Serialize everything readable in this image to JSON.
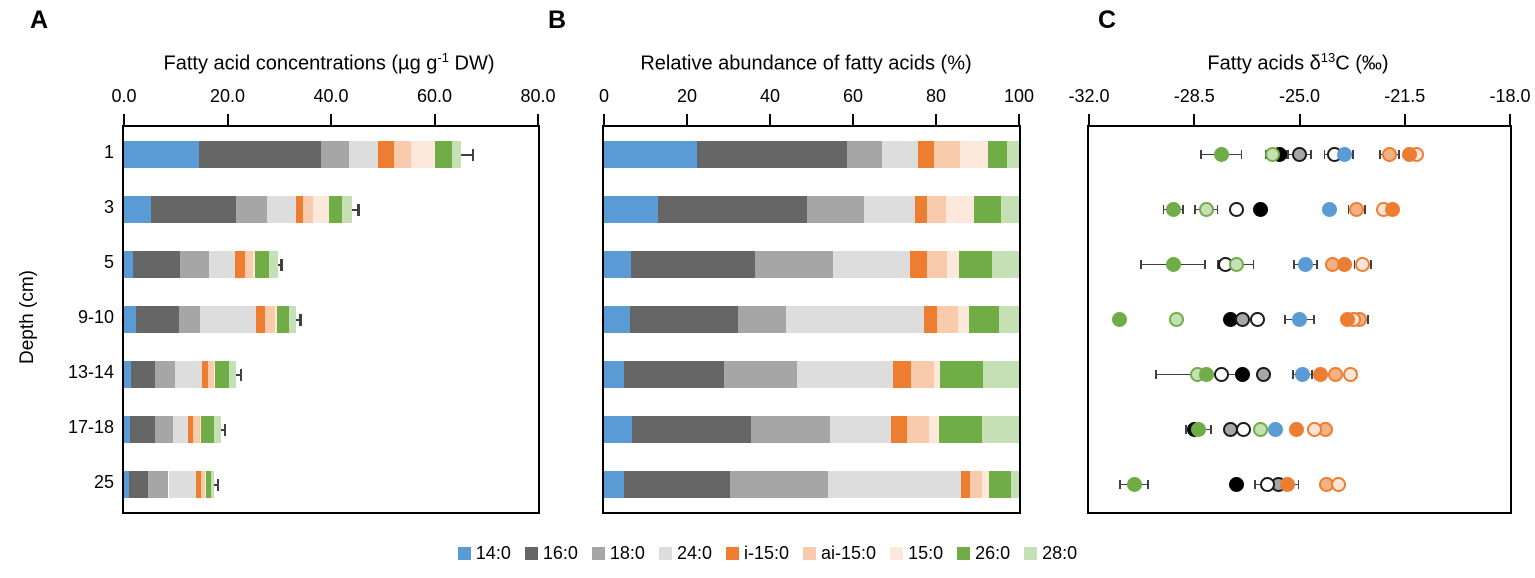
{
  "figure": {
    "panel_labels": {
      "a": "A",
      "b": "B",
      "c": "C"
    }
  },
  "y_axis": {
    "label": "Depth (cm)",
    "categories": [
      "1",
      "3",
      "5",
      "9-10",
      "13-14",
      "17-18",
      "25"
    ]
  },
  "panels": {
    "a": {
      "title": {
        "pre": "Fatty acid concentrations (µg g",
        "sup": "-1",
        "post": " DW)"
      }
    },
    "b": {
      "title": {
        "pre": "Relative abundance of fatty acids (%)",
        "sup": "",
        "post": ""
      }
    },
    "c": {
      "title": {
        "pre": "Fatty acids δ",
        "sup": "13",
        "post": "C (‰)"
      }
    }
  },
  "legend": {
    "items": [
      {
        "label": "14:0",
        "color": "#5B9BD5"
      },
      {
        "label": "16:0",
        "color": "#666666"
      },
      {
        "label": "18:0",
        "color": "#A6A6A6"
      },
      {
        "label": "24:0",
        "color": "#DDDDDD"
      },
      {
        "label": "i-15:0",
        "color": "#ED7D31"
      },
      {
        "label": "ai-15:0",
        "color": "#F8CBAD"
      },
      {
        "label": "15:0",
        "color": "#FCE9DC"
      },
      {
        "label": "26:0",
        "color": "#70AD47"
      },
      {
        "label": "28:0",
        "color": "#C5E0B4"
      }
    ]
  },
  "c_marker_styles": {
    "14:0": {
      "fill": "#5B9BD5",
      "edge": "#5B9BD5"
    },
    "16:0": {
      "fill": "#000000",
      "edge": "#000000"
    },
    "18:0": {
      "fill": "#A6A6A6",
      "edge": "#1a1a1a"
    },
    "24:0": {
      "fill": "#FFFFFF",
      "edge": "#1a1a1a"
    },
    "i-15:0": {
      "fill": "#ED7D31",
      "edge": "#ED7D31"
    },
    "ai-15:0": {
      "fill": "#F4B183",
      "edge": "#ED7D31"
    },
    "15:0": {
      "fill": "#FBE5D6",
      "edge": "#ED7D31"
    },
    "26:0": {
      "fill": "#70AD47",
      "edge": "#70AD47"
    },
    "28:0": {
      "fill": "#C5E0B4",
      "edge": "#70AD47"
    }
  },
  "chart_data": [
    {
      "type": "bar",
      "stacked": true,
      "orientation": "horizontal",
      "panel": "A",
      "title": "Fatty acid concentrations (µg g-1 DW)",
      "ylabel": "Depth (cm)",
      "categories": [
        "1",
        "3",
        "5",
        "9-10",
        "13-14",
        "17-18",
        "25"
      ],
      "xlim": [
        0,
        80
      ],
      "xticks": [
        0,
        20,
        40,
        60,
        80
      ],
      "xtick_labels": [
        "0.0",
        "20.0",
        "40.0",
        "60.0",
        "80.0"
      ],
      "series": [
        {
          "name": "14:0",
          "values": [
            14.4,
            5.3,
            1.8,
            2.3,
            1.4,
            1.2,
            1.0
          ]
        },
        {
          "name": "16:0",
          "values": [
            23.7,
            16.3,
            9.0,
            8.3,
            4.5,
            4.8,
            3.6
          ]
        },
        {
          "name": "18:0",
          "values": [
            5.4,
            6.0,
            5.7,
            4.0,
            3.9,
            3.5,
            4.0
          ]
        },
        {
          "name": "24:0",
          "values": [
            5.6,
            5.6,
            5.0,
            11.0,
            5.3,
            2.8,
            5.4
          ]
        },
        {
          "name": "i-15:0",
          "values": [
            3.1,
            1.4,
            1.8,
            1.6,
            1.2,
            1.0,
            0.9
          ]
        },
        {
          "name": "ai-15:0",
          "values": [
            3.3,
            1.9,
            1.6,
            2.0,
            1.0,
            1.4,
            0.8
          ]
        },
        {
          "name": "15:0",
          "values": [
            4.6,
            3.1,
            0.4,
            0.3,
            0.3,
            0.2,
            0.2
          ]
        },
        {
          "name": "26:0",
          "values": [
            3.3,
            2.6,
            2.7,
            2.4,
            2.6,
            2.4,
            1.0
          ]
        },
        {
          "name": "28:0",
          "values": [
            1.7,
            1.9,
            1.8,
            1.4,
            1.4,
            1.4,
            0.5
          ]
        }
      ],
      "totals": [
        65.1,
        44.1,
        29.8,
        33.3,
        21.6,
        18.7,
        17.4
      ],
      "total_errors": [
        2.3,
        1.2,
        0.6,
        0.8,
        1.0,
        0.8,
        0.7
      ]
    },
    {
      "type": "bar",
      "stacked": true,
      "orientation": "horizontal",
      "panel": "B",
      "title": "Relative abundance of fatty acids (%)",
      "ylabel": "Depth (cm)",
      "categories": [
        "1",
        "3",
        "5",
        "9-10",
        "13-14",
        "17-18",
        "25"
      ],
      "xlim": [
        0,
        100
      ],
      "xticks": [
        0,
        20,
        40,
        60,
        80,
        100
      ],
      "xtick_labels": [
        "0",
        "20",
        "40",
        "60",
        "80",
        "100"
      ],
      "series": [
        {
          "name": "14:0",
          "values": [
            22.5,
            13.1,
            6.4,
            6.2,
            4.7,
            6.7,
            4.8
          ]
        },
        {
          "name": "16:0",
          "values": [
            36.1,
            35.9,
            29.9,
            26.0,
            24.3,
            28.7,
            25.5
          ]
        },
        {
          "name": "18:0",
          "values": [
            8.4,
            13.7,
            18.9,
            11.6,
            17.5,
            19.1,
            23.7
          ]
        },
        {
          "name": "24:0",
          "values": [
            8.6,
            12.2,
            18.6,
            33.3,
            23.1,
            14.6,
            32.0
          ]
        },
        {
          "name": "i-15:0",
          "values": [
            3.9,
            2.9,
            4.0,
            3.2,
            4.4,
            4.0,
            2.2
          ]
        },
        {
          "name": "ai-15:0",
          "values": [
            6.4,
            4.6,
            4.8,
            5.0,
            5.6,
            5.1,
            2.8
          ]
        },
        {
          "name": "15:0",
          "values": [
            6.6,
            6.7,
            3.0,
            2.7,
            1.4,
            2.6,
            1.8
          ]
        },
        {
          "name": "26:0",
          "values": [
            4.7,
            6.6,
            8.0,
            7.2,
            10.4,
            10.4,
            5.2
          ]
        },
        {
          "name": "28:0",
          "values": [
            2.8,
            4.4,
            6.4,
            4.8,
            8.6,
            8.8,
            2.0
          ]
        }
      ],
      "totals": [
        100,
        100,
        100,
        100,
        100,
        100,
        100
      ],
      "total_errors": [
        0,
        0,
        0,
        0,
        0,
        0,
        0
      ]
    },
    {
      "type": "scatter",
      "panel": "C",
      "title": "Fatty acids δ13C (‰)",
      "ylabel": "Depth (cm)",
      "categories": [
        "1",
        "3",
        "5",
        "9-10",
        "13-14",
        "17-18",
        "25"
      ],
      "xlim": [
        -32,
        -18
      ],
      "xticks": [
        -32,
        -28.5,
        -25,
        -21.5,
        -18
      ],
      "xtick_labels": [
        "-32.0",
        "-28.5",
        "-25.0",
        "-21.5",
        "-18.0"
      ],
      "series": [
        {
          "name": "14:0",
          "values": [
            -23.5,
            -24.0,
            -24.8,
            -25.0,
            -24.9,
            -25.8,
            null
          ],
          "errors": [
            0.3,
            0,
            0.4,
            0.5,
            0.35,
            0,
            0
          ]
        },
        {
          "name": "16:0",
          "values": [
            -25.65,
            -26.3,
            null,
            -27.3,
            -26.9,
            -28.5,
            -27.1
          ],
          "errors": [
            0.25,
            0,
            0,
            0,
            0,
            0,
            0
          ]
        },
        {
          "name": "18:0",
          "values": [
            -25.0,
            null,
            null,
            -26.9,
            -26.2,
            -27.3,
            -25.7
          ],
          "errors": [
            0.4,
            0,
            0,
            0,
            0,
            0,
            0
          ]
        },
        {
          "name": "24:0",
          "values": [
            -23.85,
            -27.1,
            -27.45,
            -26.4,
            -27.6,
            -26.85,
            -26.05
          ],
          "errors": [
            0.35,
            0,
            0.3,
            0,
            0,
            0,
            0.45
          ]
        },
        {
          "name": "i-15:0",
          "values": [
            -21.35,
            -21.9,
            -23.5,
            -23.4,
            -24.3,
            -25.1,
            -25.4
          ],
          "errors": [
            0,
            0,
            0,
            0,
            0,
            0,
            0.4
          ]
        },
        {
          "name": "ai-15:0",
          "values": [
            -22.0,
            -23.1,
            -23.9,
            -23.0,
            -23.8,
            -24.15,
            -24.1
          ],
          "errors": [
            0.35,
            0.3,
            0,
            0.3,
            0,
            0,
            0
          ]
        },
        {
          "name": "15:0",
          "values": [
            -21.1,
            -22.2,
            -22.9,
            -23.2,
            -23.3,
            -24.5,
            -23.7
          ],
          "errors": [
            0,
            0,
            0.3,
            0.2,
            0.2,
            0.15,
            0.15
          ]
        },
        {
          "name": "26:0",
          "values": [
            -27.6,
            -29.2,
            -29.2,
            -31.0,
            -28.1,
            -28.35,
            -30.5
          ],
          "errors": [
            0.7,
            0.35,
            1.1,
            0,
            0,
            0.45,
            0.5
          ]
        },
        {
          "name": "28:0",
          "values": [
            -25.9,
            -28.1,
            -27.1,
            -29.1,
            -28.4,
            -26.3,
            null
          ],
          "errors": [
            0.25,
            0.4,
            0.6,
            0,
            1.4,
            0,
            0
          ]
        }
      ]
    }
  ]
}
